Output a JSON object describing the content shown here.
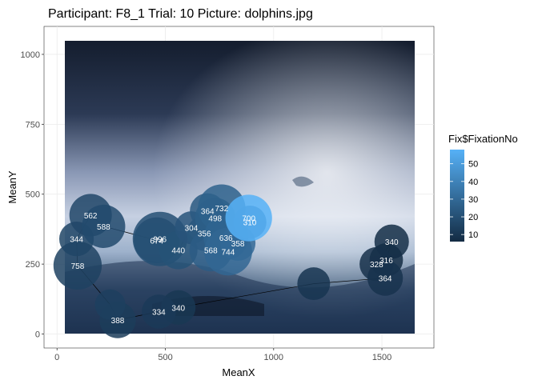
{
  "chart_data": {
    "type": "scatter",
    "title": "Participant: F8_1 Trial: 10 Picture: dolphins.jpg",
    "xlabel": "MeanX",
    "ylabel": "MeanY",
    "xlim": [
      -60,
      1740
    ],
    "ylim": [
      -50,
      1100
    ],
    "x_ticks": [
      "0",
      "500",
      "1000",
      "1500"
    ],
    "y_ticks": [
      "0",
      "250",
      "500",
      "750",
      "1000"
    ],
    "grid": true,
    "background_image": "dolphins.jpg",
    "legend": {
      "title": "Fix$FixationNo",
      "position": "right",
      "breaks": [
        "10",
        "20",
        "30",
        "40",
        "50"
      ],
      "range": [
        6,
        58
      ],
      "color_low": "#132b43",
      "color_high": "#56b1f7"
    },
    "points": [
      {
        "fix": 6,
        "label": "316",
        "x": 1520,
        "y": 265,
        "dur": 316
      },
      {
        "fix": 7,
        "label": "340",
        "x": 1545,
        "y": 330,
        "dur": 340
      },
      {
        "fix": 8,
        "label": "328",
        "x": 1475,
        "y": 250,
        "dur": 328
      },
      {
        "fix": 9,
        "label": "364",
        "x": 1515,
        "y": 200,
        "dur": 364
      },
      {
        "fix": 10,
        "label": "",
        "x": 1185,
        "y": 180,
        "dur": 300
      },
      {
        "fix": 11,
        "label": "340",
        "x": 560,
        "y": 95,
        "dur": 340
      },
      {
        "fix": 12,
        "label": "334",
        "x": 470,
        "y": 80,
        "dur": 334
      },
      {
        "fix": 13,
        "label": "388",
        "x": 280,
        "y": 50,
        "dur": 388
      },
      {
        "fix": 14,
        "label": "",
        "x": 245,
        "y": 105,
        "dur": 250
      },
      {
        "fix": 15,
        "label": "758",
        "x": 95,
        "y": 245,
        "dur": 758
      },
      {
        "fix": 16,
        "label": "344",
        "x": 90,
        "y": 340,
        "dur": 344
      },
      {
        "fix": 17,
        "label": "562",
        "x": 155,
        "y": 425,
        "dur": 562
      },
      {
        "fix": 18,
        "label": "588",
        "x": 215,
        "y": 385,
        "dur": 588
      },
      {
        "fix": 19,
        "label": "674",
        "x": 460,
        "y": 335,
        "dur": 674
      },
      {
        "fix": 20,
        "label": "996",
        "x": 475,
        "y": 340,
        "dur": 996
      },
      {
        "fix": 21,
        "label": "440",
        "x": 560,
        "y": 300,
        "dur": 440
      },
      {
        "fix": 22,
        "label": "304",
        "x": 620,
        "y": 380,
        "dur": 304
      },
      {
        "fix": 23,
        "label": "356",
        "x": 680,
        "y": 360,
        "dur": 356
      },
      {
        "fix": 24,
        "label": "364",
        "x": 695,
        "y": 440,
        "dur": 364
      },
      {
        "fix": 25,
        "label": "568",
        "x": 710,
        "y": 300,
        "dur": 568
      },
      {
        "fix": 26,
        "label": "498",
        "x": 730,
        "y": 415,
        "dur": 498
      },
      {
        "fix": 27,
        "label": "732",
        "x": 760,
        "y": 450,
        "dur": 732
      },
      {
        "fix": 28,
        "label": "636",
        "x": 780,
        "y": 345,
        "dur": 636
      },
      {
        "fix": 29,
        "label": "744",
        "x": 790,
        "y": 295,
        "dur": 744
      },
      {
        "fix": 30,
        "label": "358",
        "x": 835,
        "y": 325,
        "dur": 358
      },
      {
        "fix": 31,
        "label": "310",
        "x": 890,
        "y": 400,
        "dur": 310
      },
      {
        "fix": 58,
        "label": "700",
        "x": 885,
        "y": 415,
        "dur": 700
      }
    ]
  }
}
